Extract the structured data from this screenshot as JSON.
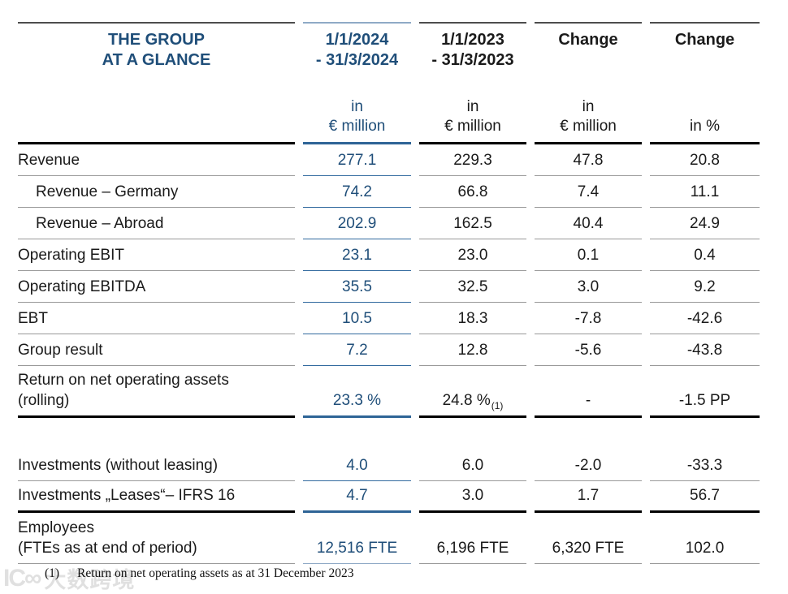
{
  "header": {
    "title_line1": "THE GROUP",
    "title_line2": "AT A GLANCE",
    "columns": [
      {
        "period_line1": "1/1/2024",
        "period_line2": "- 31/3/2024",
        "unit_line1": "in",
        "unit_line2": "€ million"
      },
      {
        "period_line1": "1/1/2023",
        "period_line2": "- 31/3/2023",
        "unit_line1": "in",
        "unit_line2": "€ million"
      },
      {
        "period_line1": "Change",
        "period_line2": "",
        "unit_line1": "in",
        "unit_line2": "€ million"
      },
      {
        "period_line1": "Change",
        "period_line2": "",
        "unit_line1": "",
        "unit_line2": "in %"
      }
    ]
  },
  "table": {
    "rows": [
      {
        "label": "Revenue",
        "values": [
          "277.1",
          "229.3",
          "47.8",
          "20.8"
        ]
      },
      {
        "label": "Revenue – Germany",
        "values": [
          "74.2",
          "66.8",
          "7.4",
          "11.1"
        ]
      },
      {
        "label": "Revenue – Abroad",
        "values": [
          "202.9",
          "162.5",
          "40.4",
          "24.9"
        ]
      },
      {
        "label": "Operating EBIT",
        "values": [
          "23.1",
          "23.0",
          "0.1",
          "0.4"
        ]
      },
      {
        "label": "Operating EBITDA",
        "values": [
          "35.5",
          "32.5",
          "3.0",
          "9.2"
        ]
      },
      {
        "label": "EBT",
        "values": [
          "10.5",
          "18.3",
          "-7.8",
          "-42.6"
        ]
      },
      {
        "label": "Group result",
        "values": [
          "7.2",
          "12.8",
          "-5.6",
          "-43.8"
        ]
      },
      {
        "label_line1": "Return on net operating assets",
        "label_line2": "(rolling)",
        "values": [
          "23.3 %",
          "24.8 %",
          "-",
          "-1.5 PP"
        ],
        "sup": "(1)"
      },
      {
        "label": "Investments (without leasing)",
        "values": [
          "4.0",
          "6.0",
          "-2.0",
          "-33.3"
        ]
      },
      {
        "label": "Investments „Leases“– IFRS 16",
        "values": [
          "4.7",
          "3.0",
          "1.7",
          "56.7"
        ]
      },
      {
        "label_line1": "Employees",
        "label_line2": "(FTEs as at end of period)",
        "values": [
          "12,516 FTE",
          "6,196 FTE",
          "6,320 FTE",
          "102.0"
        ]
      }
    ]
  },
  "footnote": {
    "marker": "(1)",
    "text": "Return on net operating assets as at 31 December 2023"
  },
  "watermark": {
    "logo": "IC∞",
    "text": "大数跨境"
  },
  "colors": {
    "navy_text": "#1F4E79",
    "blue_line_thick": "#2E6496",
    "blue_line_thin": "#31699E",
    "blue_line_light": "#8FAAC6",
    "gray_line": "#999999",
    "black_line": "#000000"
  }
}
